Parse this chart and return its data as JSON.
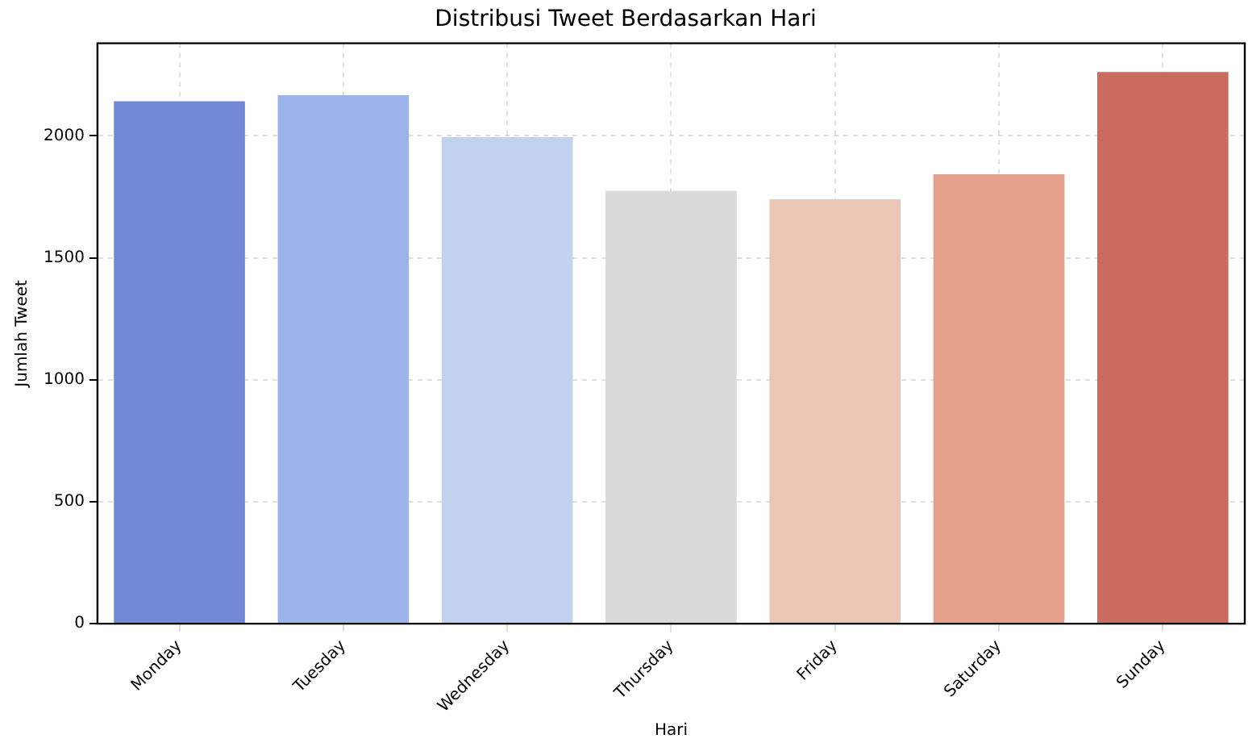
{
  "chart_data": {
    "type": "bar",
    "title": "Distribusi Tweet Berdasarkan Hari",
    "xlabel": "Hari",
    "ylabel": "Jumlah Tweet",
    "categories": [
      "Monday",
      "Tuesday",
      "Wednesday",
      "Thursday",
      "Friday",
      "Saturday",
      "Sunday"
    ],
    "values": [
      2142,
      2167,
      1995,
      1775,
      1740,
      1843,
      2262
    ],
    "colors": [
      "#7289d6",
      "#9bb4ec",
      "#c1d1ee",
      "#dadada",
      "#eac6b5",
      "#e2a08a",
      "#cb6b5f"
    ],
    "ylim": [
      0,
      2380
    ],
    "yticks": [
      0,
      500,
      1000,
      1500,
      2000
    ],
    "grid": true,
    "legend": false
  }
}
